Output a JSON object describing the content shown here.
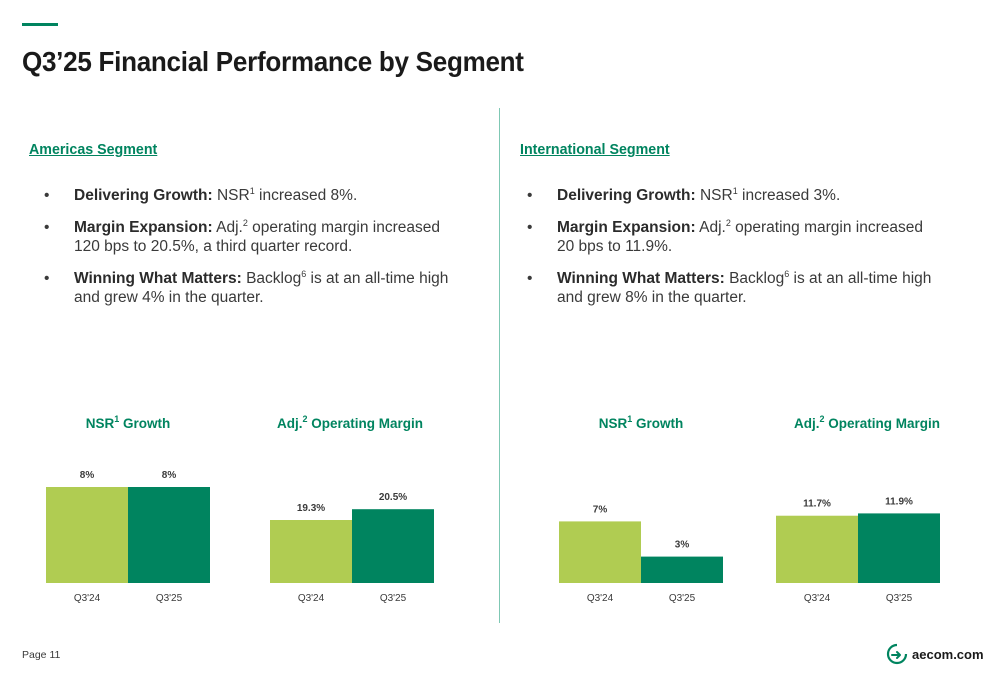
{
  "title": "Q3’25 Financial Performance by Segment",
  "colors": {
    "accent": "#00845f",
    "prior": "#b0cc52",
    "current": "#00845f",
    "divider": "#7fc8b4"
  },
  "americas": {
    "heading": "Americas Segment",
    "bullets": [
      {
        "lead": "Delivering Growth:",
        "parts": [
          "NSR",
          "1",
          " increased 8%."
        ]
      },
      {
        "lead": "Margin Expansion:",
        "parts": [
          "Adj.",
          "2",
          " operating margin increased 120 bps to 20.5%, a third quarter record."
        ]
      },
      {
        "lead": "Winning What Matters:",
        "parts": [
          "Backlog",
          "6",
          " is at an all-time high and grew 4% in the quarter."
        ]
      }
    ]
  },
  "international": {
    "heading": "International Segment",
    "bullets": [
      {
        "lead": "Delivering Growth:",
        "parts": [
          "NSR",
          "1",
          " increased 3%."
        ]
      },
      {
        "lead": "Margin Expansion:",
        "parts": [
          "Adj.",
          "2",
          " operating margin increased 20 bps to 11.9%."
        ]
      },
      {
        "lead": "Winning What Matters:",
        "parts": [
          "Backlog",
          "6",
          " is at an all-time high and grew 8% in the quarter."
        ]
      }
    ]
  },
  "chart_data": [
    {
      "type": "bar",
      "title_main": "NSR",
      "title_sup": "1",
      "title_rest": " Growth",
      "categories": [
        "Q3'24",
        "Q3'25"
      ],
      "values": [
        8,
        8
      ],
      "labels": [
        "8%",
        "8%"
      ],
      "unit": "%"
    },
    {
      "type": "bar",
      "title_main": "Adj.",
      "title_sup": "2",
      "title_rest": " Operating Margin",
      "categories": [
        "Q3'24",
        "Q3'25"
      ],
      "values": [
        19.3,
        20.5
      ],
      "labels": [
        "19.3%",
        "20.5%"
      ],
      "unit": "%"
    },
    {
      "type": "bar",
      "title_main": "NSR",
      "title_sup": "1",
      "title_rest": " Growth",
      "categories": [
        "Q3'24",
        "Q3'25"
      ],
      "values": [
        7,
        3
      ],
      "labels": [
        "7%",
        "3%"
      ],
      "unit": "%"
    },
    {
      "type": "bar",
      "title_main": "Adj.",
      "title_sup": "2",
      "title_rest": " Operating Margin",
      "categories": [
        "Q3'24",
        "Q3'25"
      ],
      "values": [
        11.7,
        11.9
      ],
      "labels": [
        "11.7%",
        "11.9%"
      ],
      "unit": "%"
    }
  ],
  "footer": {
    "page": "Page 11",
    "logo_text": "aecom.com",
    "logo_icon": "aecom-arrow-logo-icon"
  }
}
